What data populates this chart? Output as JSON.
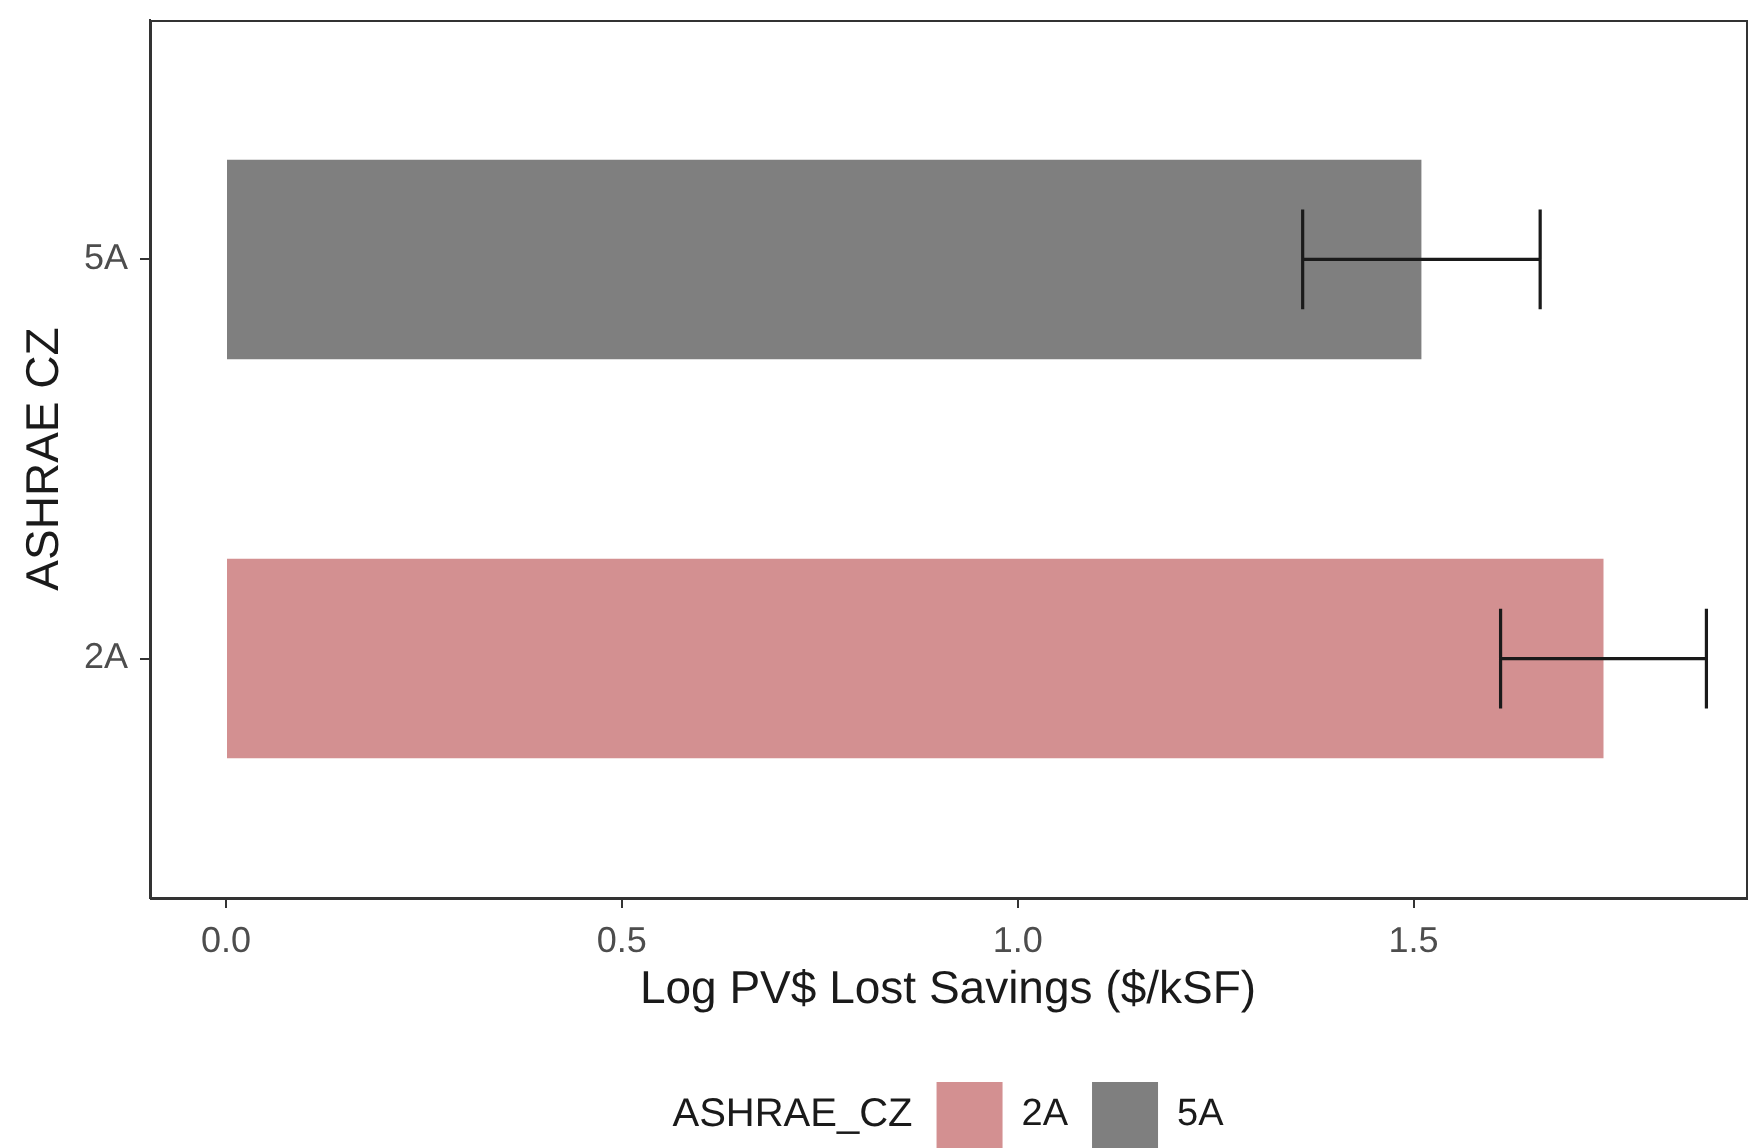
{
  "chart_data": {
    "type": "bar",
    "orientation": "horizontal",
    "xlabel": "Log PV$ Lost Savings ($/kSF)",
    "ylabel": "ASHRAE CZ",
    "legend_title": "ASHRAE_CZ",
    "legend": "bottom",
    "categories": [
      "5A",
      "2A"
    ],
    "series": [
      {
        "name": "2A",
        "color": "#d39091",
        "values": [
          null,
          1.74
        ],
        "errors": [
          null,
          [
            1.61,
            1.87
          ]
        ]
      },
      {
        "name": "5A",
        "color": "#7f7f7f",
        "values": [
          1.51,
          null
        ],
        "errors": [
          [
            1.36,
            1.66
          ],
          null
        ]
      }
    ],
    "xlim": [
      -0.096,
      1.92
    ],
    "xticks": [
      {
        "value": 0,
        "label": "0.0"
      },
      0.5,
      {
        "value": 1,
        "label": "1.0"
      },
      1.5
    ]
  }
}
